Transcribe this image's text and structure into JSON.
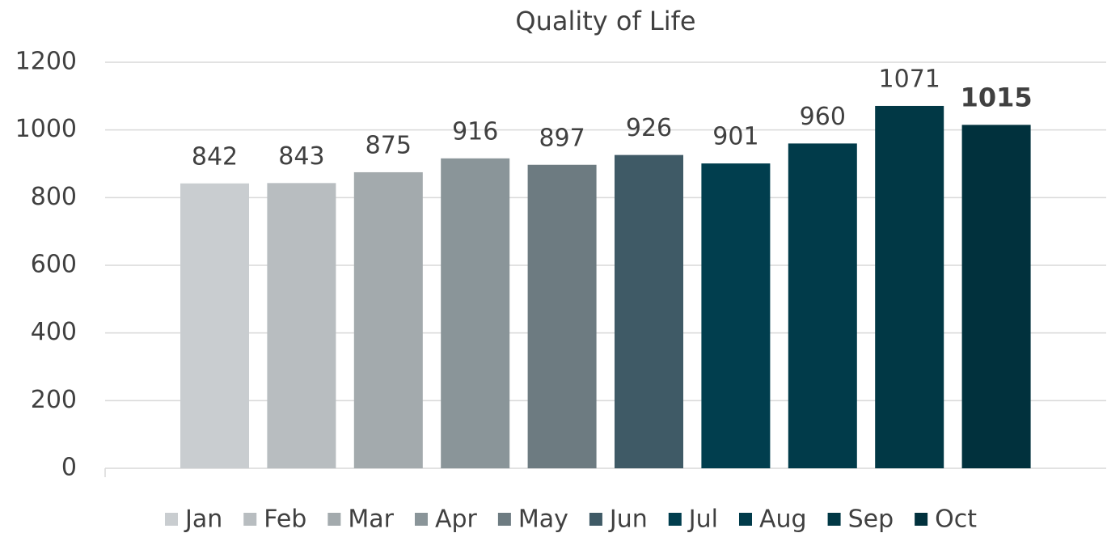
{
  "chart_data": {
    "type": "bar",
    "title": "Quality of Life",
    "series": [
      {
        "name": "Jan",
        "color": "#c9cdd0",
        "values": [
          842
        ]
      },
      {
        "name": "Feb",
        "color": "#b8bdc0",
        "values": [
          843
        ]
      },
      {
        "name": "Mar",
        "color": "#a3aaad",
        "values": [
          875
        ]
      },
      {
        "name": "Apr",
        "color": "#8a9599",
        "values": [
          916
        ]
      },
      {
        "name": "May",
        "color": "#6d7b81",
        "values": [
          897
        ]
      },
      {
        "name": "Jun",
        "color": "#3f5a66",
        "values": [
          926
        ]
      },
      {
        "name": "Jul",
        "color": "#013e4e",
        "values": [
          901
        ]
      },
      {
        "name": "Aug",
        "color": "#013b4a",
        "values": [
          960
        ]
      },
      {
        "name": "Sep",
        "color": "#013845",
        "values": [
          1071
        ]
      },
      {
        "name": "Oct",
        "color": "#01313d",
        "values": [
          1015
        ]
      }
    ],
    "ylim": [
      0,
      1200
    ],
    "yticks": [
      0,
      200,
      400,
      600,
      800,
      1000,
      1200
    ],
    "grid": true,
    "legend": "bottom"
  }
}
